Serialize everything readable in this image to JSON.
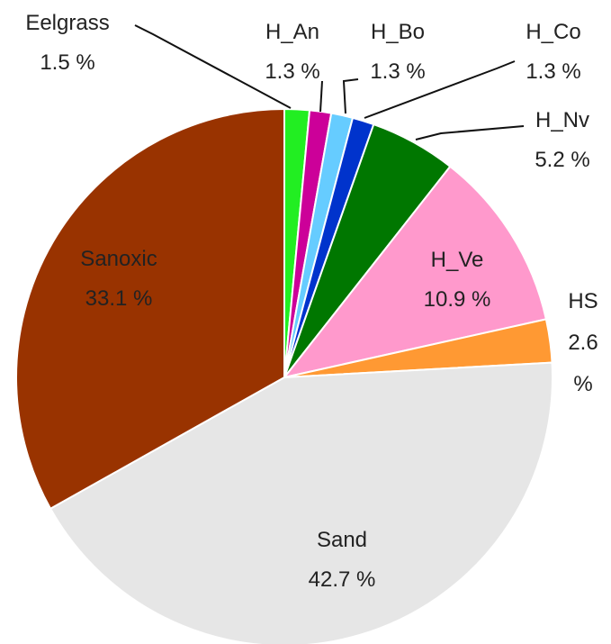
{
  "chart_data": {
    "type": "pie",
    "categories": [
      "Eelgrass",
      "H_An",
      "H_Bo",
      "H_Co",
      "H_Nv",
      "H_Ve",
      "HS",
      "Sand",
      "Sanoxic"
    ],
    "values": [
      1.5,
      1.3,
      1.3,
      1.3,
      5.2,
      10.9,
      2.6,
      42.7,
      33.1
    ],
    "value_labels": [
      "1.5 %",
      "1.3 %",
      "1.3 %",
      "1.3 %",
      "5.2 %",
      "10.9 %",
      "2.6 %",
      "42.7 %",
      "33.1 %"
    ],
    "colors": [
      "#22ee22",
      "#cc0099",
      "#66ccff",
      "#0033cc",
      "#007700",
      "#ff99cc",
      "#ff9933",
      "#e6e6e6",
      "#993300"
    ]
  }
}
